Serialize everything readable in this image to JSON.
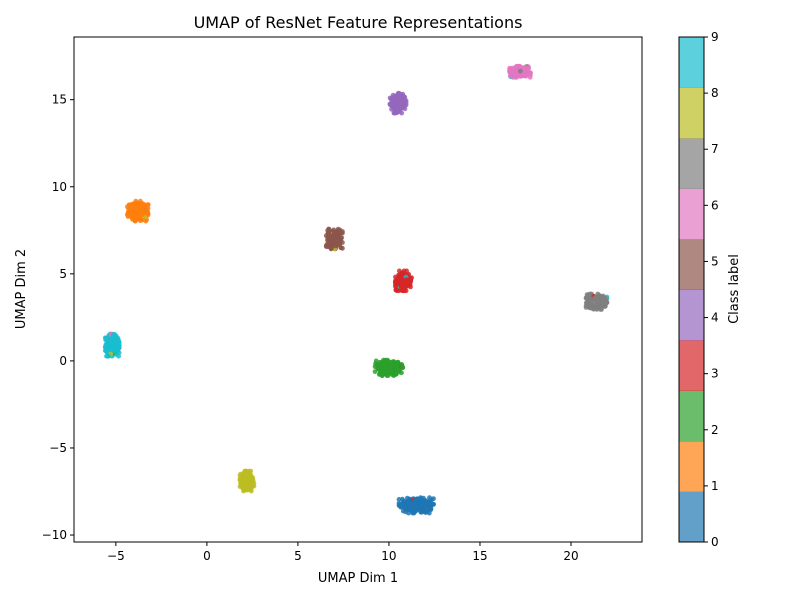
{
  "chart_data": {
    "type": "scatter",
    "title": "UMAP of ResNet Feature Representations",
    "xlabel": "UMAP Dim 1",
    "ylabel": "UMAP Dim 2",
    "xlim": [
      -7.3,
      23.9
    ],
    "ylim": [
      -10.4,
      18.6
    ],
    "xticks": [
      -5,
      0,
      5,
      10,
      15,
      20
    ],
    "yticks": [
      -10,
      -5,
      0,
      5,
      10,
      15
    ],
    "grid": false,
    "colorbar": {
      "label": "Class label",
      "ticks": [
        "0",
        "1",
        "2",
        "3",
        "4",
        "5",
        "6",
        "7",
        "8",
        "9"
      ],
      "colors": [
        "#1f77b4",
        "#ff7f0e",
        "#2ca02c",
        "#d62728",
        "#9467bd",
        "#8c564b",
        "#e377c2",
        "#7f7f7f",
        "#bcbd22",
        "#17becf"
      ]
    },
    "clusters": [
      {
        "class": 0,
        "center": [
          11.5,
          -8.3
        ],
        "spread": [
          0.75,
          0.35
        ]
      },
      {
        "class": 1,
        "center": [
          -3.8,
          8.6
        ],
        "spread": [
          0.45,
          0.45
        ]
      },
      {
        "class": 2,
        "center": [
          10.0,
          -0.4
        ],
        "spread": [
          0.6,
          0.35
        ]
      },
      {
        "class": 3,
        "center": [
          10.8,
          4.6
        ],
        "spread": [
          0.35,
          0.45
        ]
      },
      {
        "class": 4,
        "center": [
          10.5,
          14.8
        ],
        "spread": [
          0.35,
          0.45
        ]
      },
      {
        "class": 5,
        "center": [
          7.0,
          7.0
        ],
        "spread": [
          0.35,
          0.45
        ]
      },
      {
        "class": 6,
        "center": [
          17.2,
          16.6
        ],
        "spread": [
          0.45,
          0.25
        ]
      },
      {
        "class": 7,
        "center": [
          21.4,
          3.4
        ],
        "spread": [
          0.45,
          0.35
        ]
      },
      {
        "class": 8,
        "center": [
          2.2,
          -6.9
        ],
        "spread": [
          0.3,
          0.45
        ]
      },
      {
        "class": 9,
        "center": [
          -5.2,
          0.9
        ],
        "spread": [
          0.3,
          0.5
        ]
      }
    ]
  }
}
